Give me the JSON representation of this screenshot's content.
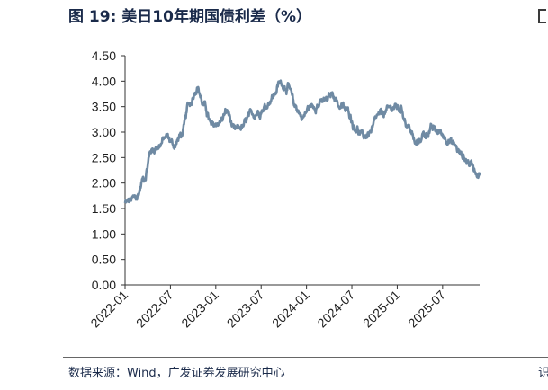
{
  "figure": {
    "title": "图  19:  美日10年期国债利差（%）",
    "source": "数据来源：Wind，广发证券发展研究中心",
    "source_edge_fragment": "识"
  },
  "chart_data": {
    "type": "line",
    "title": "美日10年期国债利差（%）",
    "xlabel": "",
    "ylabel": "",
    "ylim": [
      0,
      4.5
    ],
    "yticks": [
      "0.00",
      "0.50",
      "1.00",
      "1.50",
      "2.00",
      "2.50",
      "3.00",
      "3.50",
      "4.00",
      "4.50"
    ],
    "xticks": [
      "2022-01",
      "2022-07",
      "2023-01",
      "2023-07",
      "2024-01",
      "2024-07",
      "2025-01",
      "2025-07"
    ],
    "grid": false,
    "legend": "none",
    "color": "#6f8aa3",
    "series": [
      {
        "name": "",
        "x": [
          "2022-01",
          "2022-02",
          "2022-03",
          "2022-04",
          "2022-05",
          "2022-06",
          "2022-07",
          "2022-08",
          "2022-09",
          "2022-10",
          "2022-11",
          "2022-12",
          "2023-01",
          "2023-02",
          "2023-03",
          "2023-04",
          "2023-05",
          "2023-06",
          "2023-07",
          "2023-08",
          "2023-09",
          "2023-10",
          "2023-11",
          "2023-12",
          "2024-01",
          "2024-02",
          "2024-03",
          "2024-04",
          "2024-05",
          "2024-06",
          "2024-07",
          "2024-08",
          "2024-09",
          "2024-10",
          "2024-11",
          "2024-12",
          "2025-01",
          "2025-02",
          "2025-03",
          "2025-04",
          "2025-05",
          "2025-06",
          "2025-07",
          "2025-08",
          "2025-09",
          "2025-10",
          "2025-11"
        ],
        "values": [
          1.6,
          1.7,
          2.1,
          2.65,
          2.75,
          2.9,
          2.75,
          2.95,
          3.55,
          3.9,
          3.5,
          3.1,
          3.2,
          3.4,
          3.0,
          3.1,
          3.3,
          3.4,
          3.5,
          3.7,
          3.95,
          3.9,
          3.5,
          3.3,
          3.5,
          3.55,
          3.6,
          3.75,
          3.5,
          3.4,
          3.1,
          2.9,
          3.0,
          3.3,
          3.4,
          3.5,
          3.45,
          3.1,
          2.75,
          2.95,
          3.05,
          3.0,
          2.9,
          2.75,
          2.55,
          2.4,
          2.2
        ]
      }
    ]
  }
}
